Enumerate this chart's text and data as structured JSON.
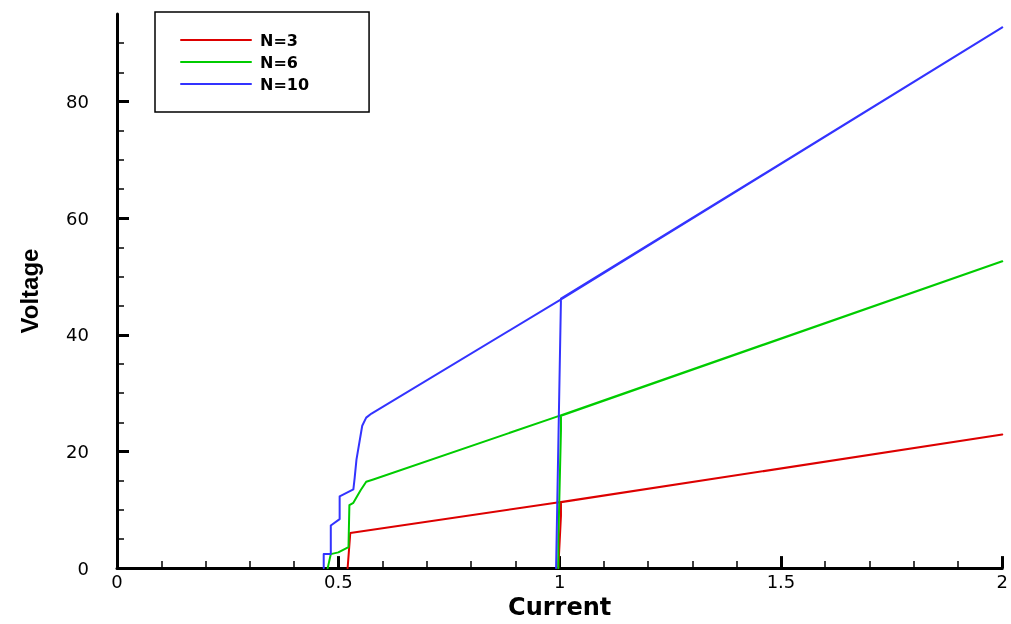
{
  "chart_data": {
    "type": "line",
    "xlabel": "Current",
    "ylabel": "Voltage",
    "xlim": [
      0,
      2
    ],
    "xticks": [
      0,
      0.5,
      1,
      1.5,
      2
    ],
    "ylim": [
      0,
      95
    ],
    "yticks": [
      0,
      20,
      40,
      60,
      80
    ],
    "grid": false,
    "legend": "top left",
    "marker": "none",
    "line_style": "solid",
    "series": [
      {
        "name": "N=3",
        "color": "#dd0000",
        "x": [
          0.521,
          0.527,
          0.999,
          2,
          1.003,
          1.003,
          0.997
        ],
        "values": [
          0,
          6.0,
          11.3,
          22.9,
          11.3,
          9.0,
          0
        ]
      },
      {
        "name": "N=6",
        "color": "#00cc00",
        "x": [
          0.476,
          0.483,
          0.5,
          0.523,
          0.525,
          0.534,
          0.55,
          0.563,
          0.579,
          0.999,
          2,
          1.003,
          1.003,
          0.997,
          0.997
        ],
        "values": [
          0,
          2.4,
          2.7,
          3.6,
          10.8,
          11.2,
          13.3,
          14.8,
          15.2,
          26.1,
          52.6,
          26.1,
          23.7,
          4.5,
          0
        ]
      },
      {
        "name": "N=10",
        "color": "#3333ff",
        "x": [
          0.467,
          0.467,
          0.483,
          0.483,
          0.503,
          0.503,
          0.534,
          0.537,
          0.541,
          0.554,
          0.563,
          0.575,
          1.006,
          2,
          1.003,
          0.992
        ],
        "values": [
          0,
          2.4,
          2.4,
          7.3,
          8.4,
          12.3,
          13.5,
          15.5,
          18.6,
          24.4,
          25.8,
          26.5,
          46.2,
          92.7,
          46.2,
          0
        ]
      }
    ]
  }
}
